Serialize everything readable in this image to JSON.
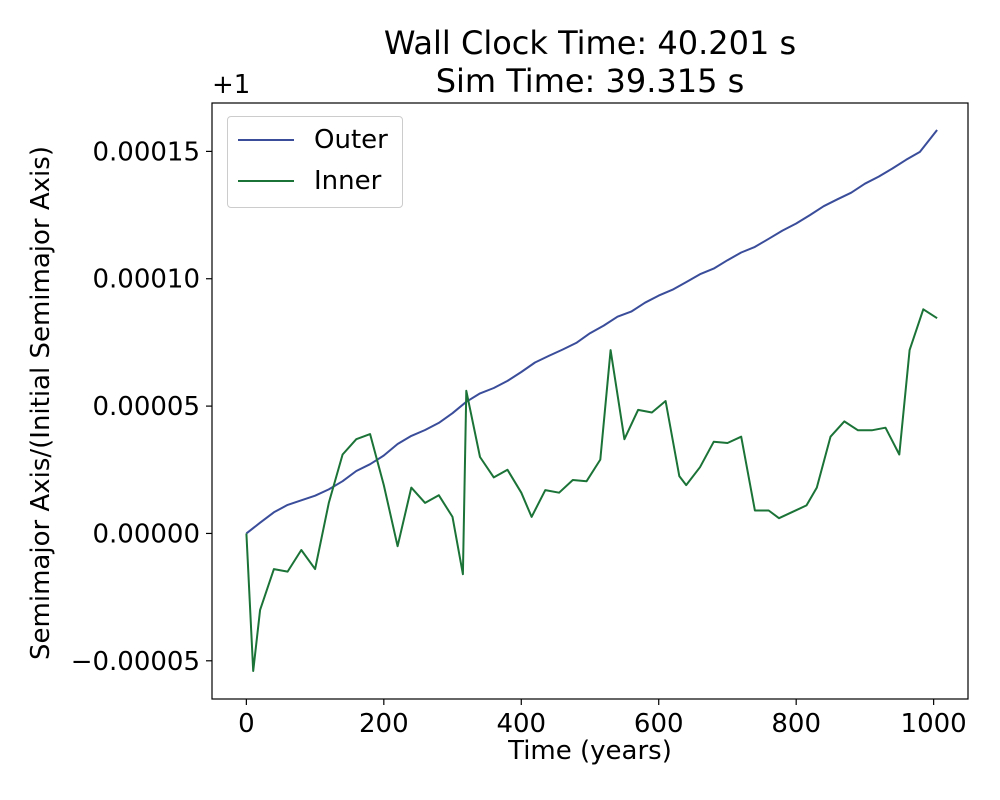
{
  "chart_data": {
    "type": "line",
    "title": "Wall Clock Time: 40.201 s",
    "subtitle": "Sim Time: 39.315 s",
    "xlabel": "Time (years)",
    "ylabel": "Semimajor Axis/(Initial Semimajor Axis)",
    "offset_label": "+1",
    "xlim": [
      -50,
      1050
    ],
    "ylim": [
      -6.5e-05,
      0.000169
    ],
    "xticks": [
      0,
      200,
      400,
      600,
      800,
      1000
    ],
    "xtick_labels": [
      "0",
      "200",
      "400",
      "600",
      "800",
      "1000"
    ],
    "yticks": [
      -5e-05,
      0,
      5e-05,
      0.0001,
      0.00015
    ],
    "ytick_labels": [
      "−0.00005",
      "0.00000",
      "0.00005",
      "0.00010",
      "0.00015"
    ],
    "grid": false,
    "legend_position": "top-left",
    "series": [
      {
        "name": "Outer",
        "color": "#3a4d9a",
        "x": [
          0,
          20,
          40,
          60,
          80,
          100,
          120,
          140,
          160,
          180,
          200,
          220,
          240,
          260,
          280,
          300,
          320,
          340,
          360,
          380,
          400,
          420,
          440,
          460,
          480,
          500,
          520,
          540,
          560,
          580,
          600,
          620,
          640,
          660,
          680,
          700,
          720,
          740,
          760,
          780,
          800,
          820,
          840,
          860,
          880,
          900,
          920,
          940,
          960,
          980,
          1005
        ],
        "values": [
          0,
          4.2e-06,
          8.3e-06,
          1.12e-05,
          1.3e-05,
          1.48e-05,
          1.73e-05,
          2.05e-05,
          2.45e-05,
          2.72e-05,
          3.06e-05,
          3.51e-05,
          3.83e-05,
          4.06e-05,
          4.34e-05,
          4.72e-05,
          5.17e-05,
          5.5e-05,
          5.71e-05,
          5.99e-05,
          6.34e-05,
          6.71e-05,
          6.97e-05,
          7.22e-05,
          7.48e-05,
          7.86e-05,
          8.16e-05,
          8.51e-05,
          8.71e-05,
          9.06e-05,
          9.34e-05,
          9.57e-05,
          9.87e-05,
          0.0001018,
          0.000104,
          0.0001073,
          0.0001103,
          0.0001125,
          0.0001157,
          0.0001189,
          0.0001217,
          0.000125,
          0.0001285,
          0.0001312,
          0.0001338,
          0.0001373,
          0.0001401,
          0.0001433,
          0.0001467,
          0.0001498,
          0.0001584
        ]
      },
      {
        "name": "Inner",
        "color": "#1b7337",
        "x": [
          0,
          10,
          20,
          40,
          60,
          80,
          100,
          120,
          140,
          160,
          180,
          200,
          220,
          240,
          260,
          280,
          300,
          315,
          320,
          340,
          360,
          380,
          400,
          415,
          435,
          455,
          475,
          495,
          515,
          530,
          550,
          570,
          590,
          610,
          630,
          640,
          660,
          680,
          700,
          720,
          740,
          760,
          775,
          795,
          815,
          830,
          850,
          870,
          890,
          910,
          930,
          950,
          965,
          985,
          1005
        ],
        "values": [
          0,
          -5.4e-05,
          -3e-05,
          -1.4e-05,
          -1.5e-05,
          -6.5e-06,
          -1.4e-05,
          1.2e-05,
          3.1e-05,
          3.7e-05,
          3.9e-05,
          1.9e-05,
          -5e-06,
          1.8e-05,
          1.2e-05,
          1.5e-05,
          6.5e-06,
          -1.6e-05,
          5.6e-05,
          3e-05,
          2.2e-05,
          2.5e-05,
          1.6e-05,
          6.5e-06,
          1.7e-05,
          1.6e-05,
          2.1e-05,
          2.05e-05,
          2.9e-05,
          7.2e-05,
          3.7e-05,
          4.85e-05,
          4.75e-05,
          5.2e-05,
          2.25e-05,
          1.9e-05,
          2.6e-05,
          3.6e-05,
          3.55e-05,
          3.8e-05,
          9e-06,
          9e-06,
          6e-06,
          8.5e-06,
          1.1e-05,
          1.8e-05,
          3.8e-05,
          4.4e-05,
          4.05e-05,
          4.05e-05,
          4.15e-05,
          3.1e-05,
          7.2e-05,
          8.8e-05,
          8.45e-05
        ]
      }
    ]
  }
}
